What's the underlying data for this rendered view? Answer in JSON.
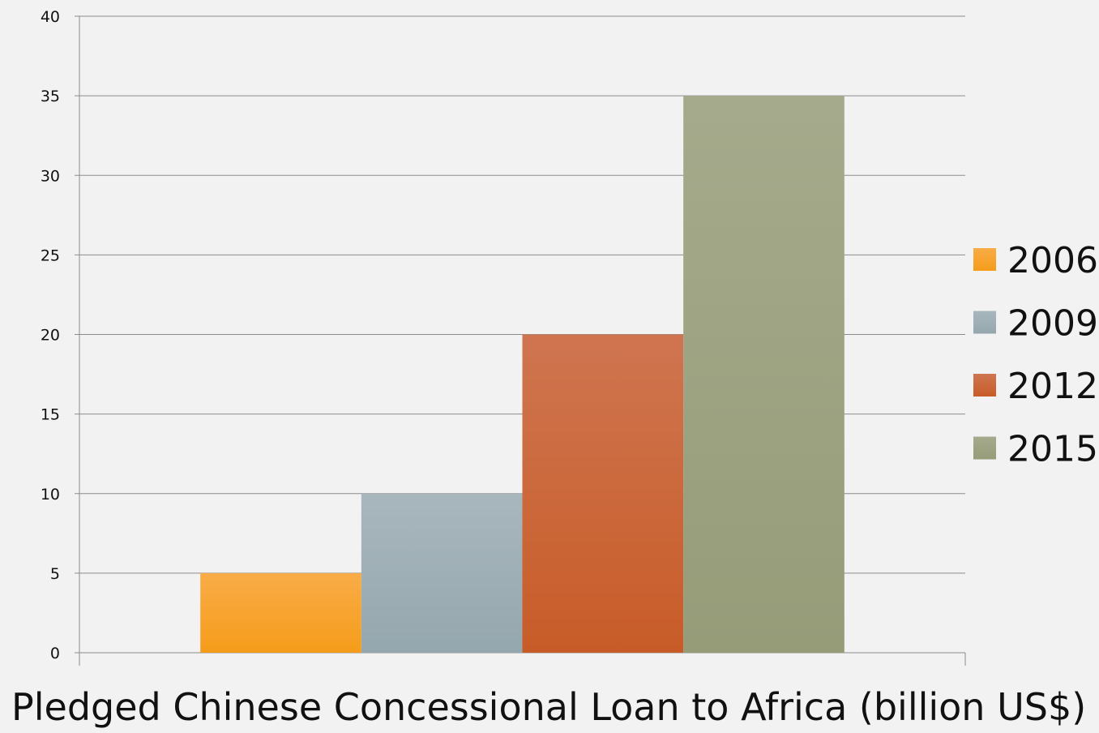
{
  "colors": {
    "background": "#f2f2f2",
    "grid": "#8c8c8c",
    "axis": "#8c8c8c"
  },
  "chart_data": {
    "type": "bar",
    "title": "",
    "xlabel": "Pledged Chinese Concessional Loan to Africa (billion US$)",
    "ylabel": "",
    "ylim": [
      0,
      40
    ],
    "yticks": [
      0,
      5,
      10,
      15,
      20,
      25,
      30,
      35,
      40
    ],
    "grid": true,
    "legend_position": "right",
    "categories": [
      ""
    ],
    "series": [
      {
        "name": "2006",
        "values": [
          5
        ],
        "color_top": "#f9ac47",
        "color_bottom": "#f59c1a"
      },
      {
        "name": "2009",
        "values": [
          10
        ],
        "color_top": "#a8b7bd",
        "color_bottom": "#95a7ae"
      },
      {
        "name": "2012",
        "values": [
          20
        ],
        "color_top": "#cf7550",
        "color_bottom": "#c85c28"
      },
      {
        "name": "2015",
        "values": [
          35
        ],
        "color_top": "#a5aa8c",
        "color_bottom": "#969c78"
      }
    ]
  }
}
